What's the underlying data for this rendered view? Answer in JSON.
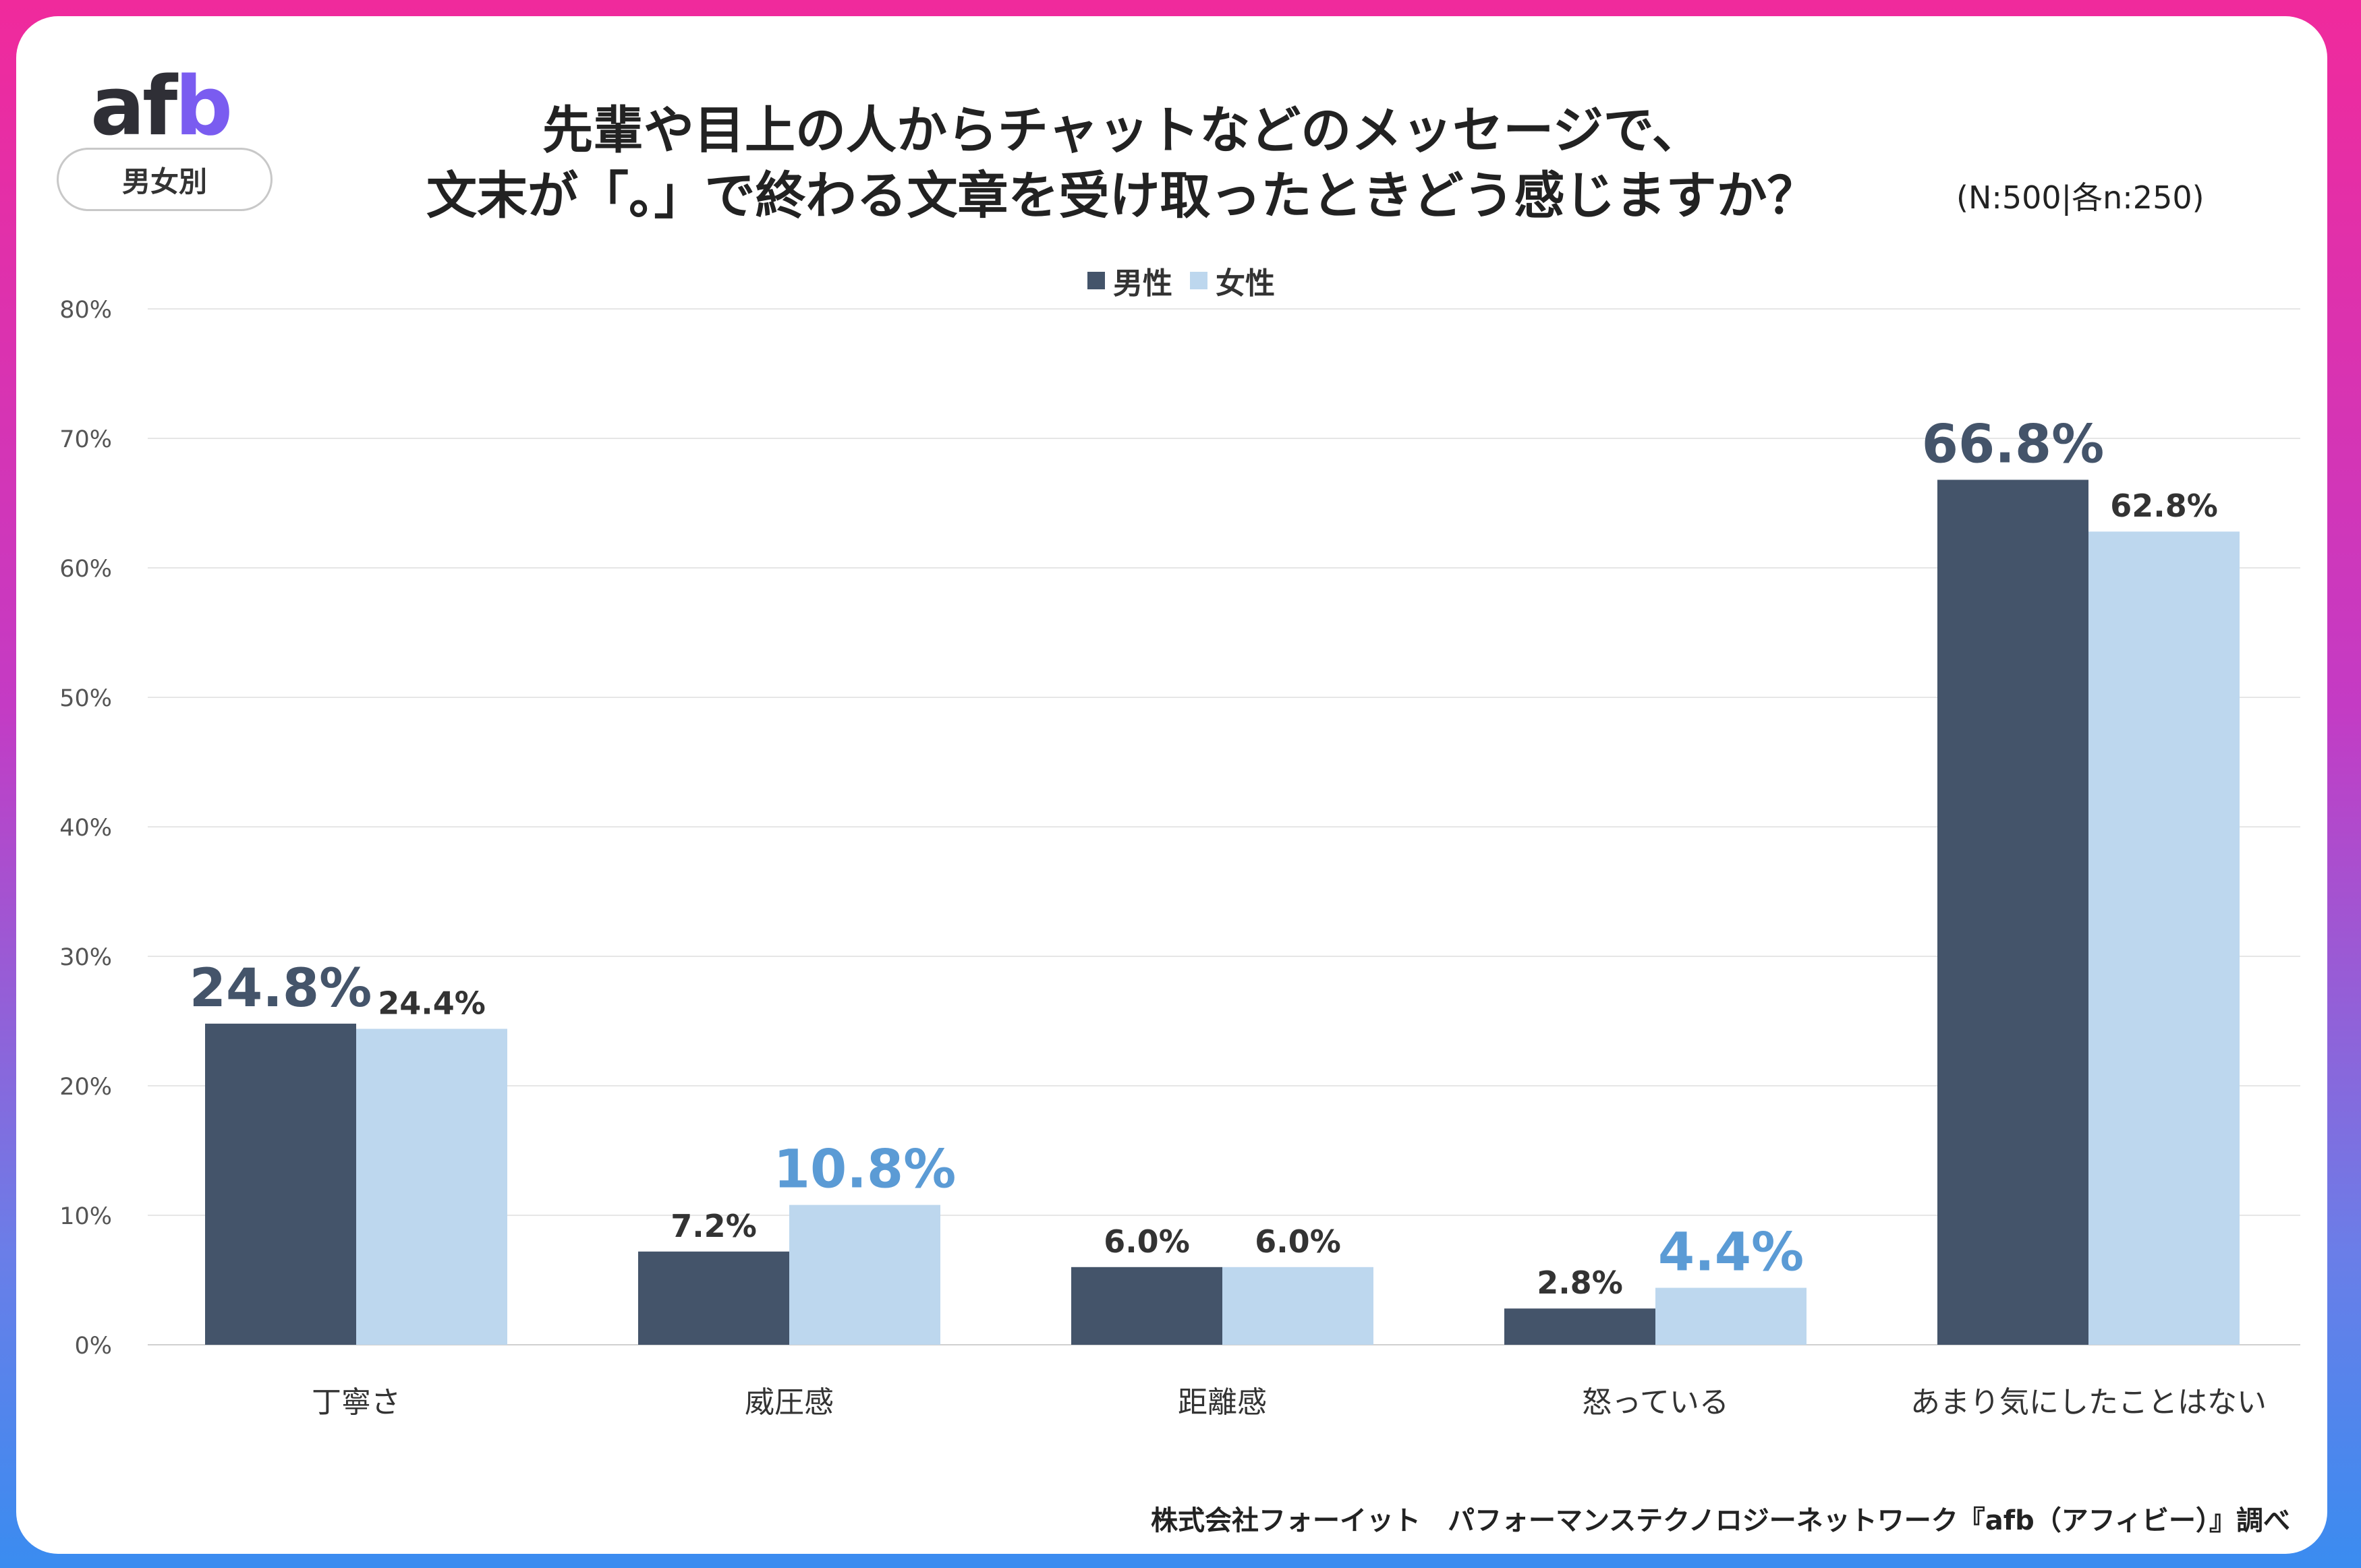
{
  "logo": {
    "af": "af",
    "b": "b"
  },
  "badge": "男女別",
  "title_line1": "先輩や目上の人からチャットなどのメッセージで、",
  "title_line2": "文末が「。」で終わる文章を受け取ったときどう感じますか？",
  "sample_note": "(N:500|各n:250)",
  "source": "株式会社フォーイット　パフォーマンステクノロジーネットワーク『afb（アフィビー）』調べ",
  "colors": {
    "male": "#44546a",
    "female": "#bdd7ee",
    "highlight_female": "#5b9bd5"
  },
  "chart_data": {
    "type": "bar",
    "title": "先輩や目上の人からチャットなどのメッセージで、文末が「。」で終わる文章を受け取ったときどう感じますか？",
    "ylim": [
      0,
      80
    ],
    "yticks": [
      0,
      10,
      20,
      30,
      40,
      50,
      60,
      70,
      80
    ],
    "ytick_labels": [
      "0%",
      "10%",
      "20%",
      "30%",
      "40%",
      "50%",
      "60%",
      "70%",
      "80%"
    ],
    "categories": [
      "丁寧さ",
      "威圧感",
      "距離感",
      "怒っている",
      "あまり気にしたことはない"
    ],
    "legend": "top-center",
    "series": [
      {
        "name": "男性",
        "values": [
          24.8,
          7.2,
          6.0,
          2.8,
          66.8
        ],
        "labels": [
          "24.8%",
          "7.2%",
          "6.0%",
          "2.8%",
          "66.8%"
        ],
        "highlight": [
          true,
          false,
          false,
          false,
          true
        ]
      },
      {
        "name": "女性",
        "values": [
          24.4,
          10.8,
          6.0,
          4.4,
          62.8
        ],
        "labels": [
          "24.4%",
          "10.8%",
          "6.0%",
          "4.4%",
          "62.8%"
        ],
        "highlight": [
          false,
          true,
          false,
          true,
          false
        ]
      }
    ]
  }
}
